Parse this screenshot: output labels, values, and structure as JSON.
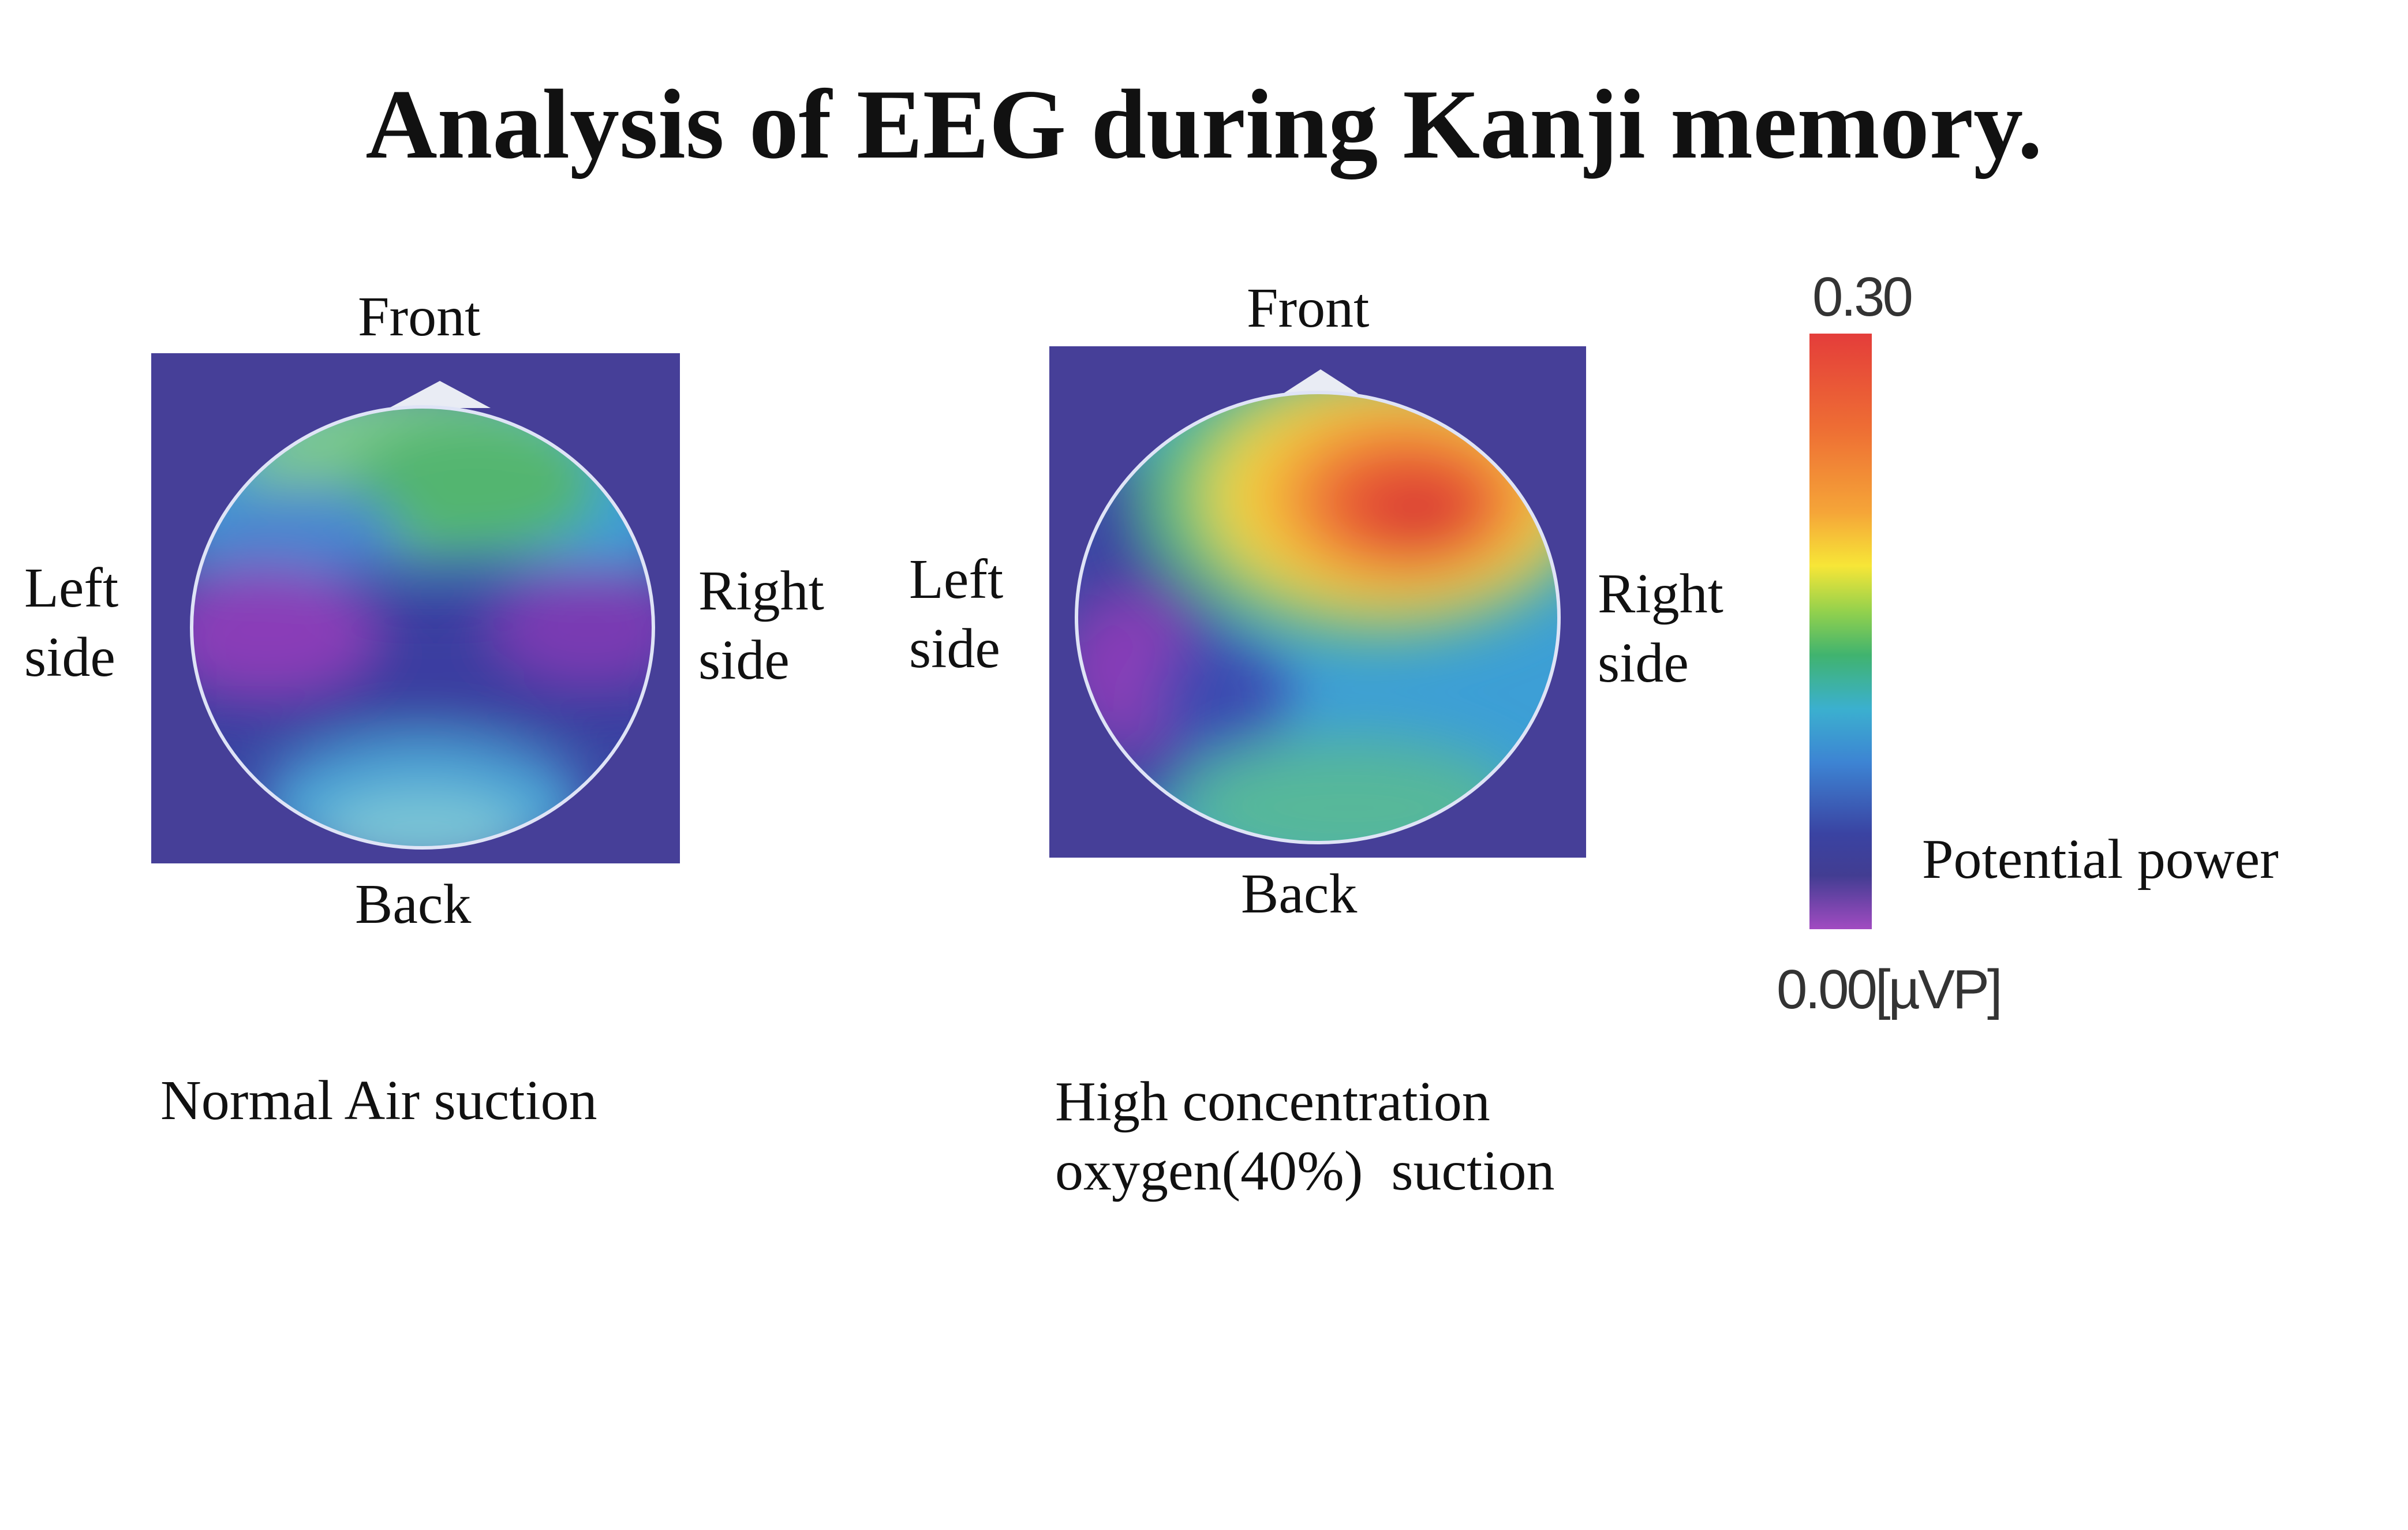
{
  "title": "Analysis of EEG during Kanji memory.",
  "panels": [
    {
      "front": "Front",
      "back": "Back",
      "left": "Left\nside",
      "right": "Right\nside",
      "caption": "Normal Air suction"
    },
    {
      "front": "Front",
      "back": "Back",
      "left": "Left\nside",
      "right": "Right\nside",
      "caption": "High concentration\noxygen(40%)  suction"
    }
  ],
  "colorbar": {
    "max_label": "0.30",
    "min_label": "0.00[µVP]",
    "title": "Potential power",
    "colors": [
      "#e43d3a",
      "#f5a538",
      "#f7e637",
      "#40b36f",
      "#3bb0cf",
      "#3a43a2",
      "#a14bc1"
    ]
  }
}
